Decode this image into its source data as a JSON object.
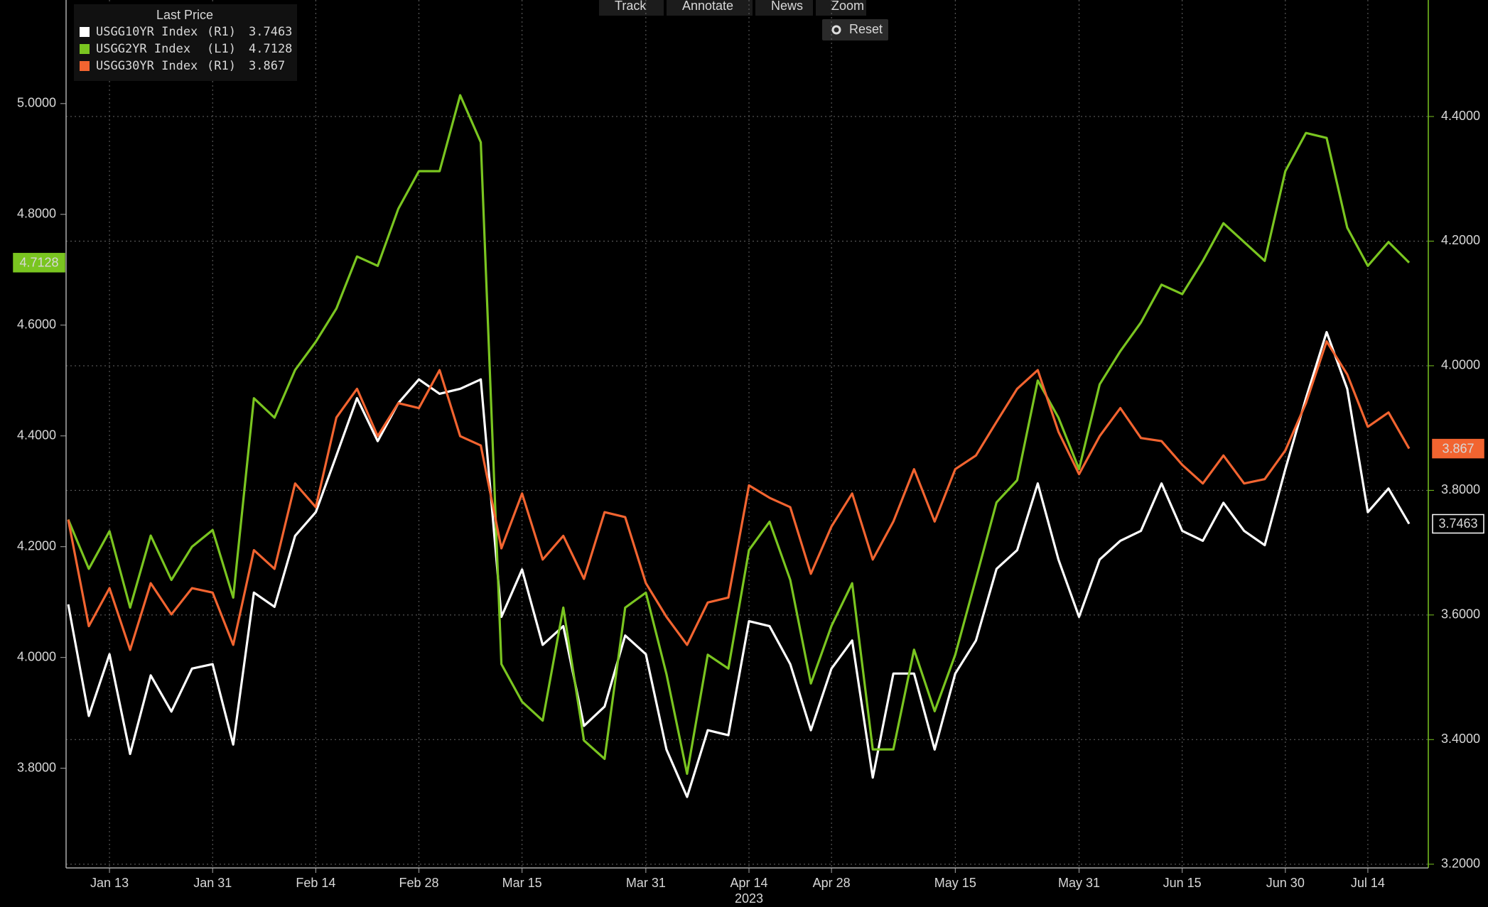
{
  "chart_data": {
    "type": "line",
    "legend_title": "Last Price",
    "toolbar": [
      "Track",
      "Annotate",
      "News",
      "Zoom"
    ],
    "reset": "Reset",
    "year": "2023",
    "categories": [
      null,
      null,
      "Jan 13",
      null,
      null,
      null,
      null,
      "Jan 31",
      null,
      null,
      null,
      null,
      "Feb 14",
      null,
      null,
      null,
      null,
      "Feb 28",
      null,
      null,
      null,
      null,
      "Mar 15",
      null,
      null,
      null,
      null,
      null,
      "Mar 31",
      null,
      null,
      null,
      null,
      "Apr 14",
      null,
      null,
      null,
      "Apr 28",
      null,
      null,
      null,
      null,
      null,
      "May 15",
      null,
      null,
      null,
      null,
      null,
      "May 31",
      null,
      null,
      null,
      null,
      "Jun 15",
      null,
      null,
      null,
      null,
      "Jun 30",
      null,
      null,
      null,
      "Jul 14",
      null,
      null
    ],
    "ylim": [
      3.62,
      5.187
    ],
    "yticks": [
      {
        "value": 3.8,
        "label": "3.8000"
      },
      {
        "value": 4.0,
        "label": "4.0000"
      },
      {
        "value": 4.2,
        "label": "4.2000"
      },
      {
        "value": 4.4,
        "label": "4.4000"
      },
      {
        "value": 4.6,
        "label": "4.6000"
      },
      {
        "value": 4.8,
        "label": "4.8000"
      },
      {
        "value": 5.0,
        "label": "5.0000"
      }
    ],
    "y2lim": [
      3.194,
      4.587
    ],
    "y2ticks": [
      {
        "value": 3.2,
        "label": "3.2000"
      },
      {
        "value": 3.4,
        "label": "3.4000"
      },
      {
        "value": 3.6,
        "label": "3.6000"
      },
      {
        "value": 3.8,
        "label": "3.8000"
      },
      {
        "value": 4.0,
        "label": "4.0000"
      },
      {
        "value": 4.2,
        "label": "4.2000"
      },
      {
        "value": 4.4,
        "label": "4.4000"
      }
    ],
    "grid": true,
    "series": [
      {
        "name": "USGG10YR Index",
        "axis_label": "(R1)",
        "axis": "y2",
        "color": "#ffffff",
        "values": [
          3.617,
          3.438,
          3.537,
          3.377,
          3.503,
          3.445,
          3.514,
          3.521,
          3.392,
          3.636,
          3.613,
          3.727,
          3.765,
          3.856,
          3.948,
          3.879,
          3.94,
          3.978,
          3.955,
          3.963,
          3.978,
          3.597,
          3.673,
          3.552,
          3.582,
          3.422,
          3.453,
          3.567,
          3.537,
          3.384,
          3.308,
          3.415,
          3.407,
          3.59,
          3.582,
          3.521,
          3.415,
          3.514,
          3.559,
          3.339,
          3.506,
          3.506,
          3.384,
          3.506,
          3.559,
          3.674,
          3.704,
          3.811,
          3.689,
          3.597,
          3.689,
          3.719,
          3.735,
          3.811,
          3.735,
          3.719,
          3.78,
          3.735,
          3.712,
          3.834,
          3.948,
          4.054,
          3.963,
          3.765,
          3.803,
          3.7463
        ]
      },
      {
        "name": "USGG2YR Index",
        "axis_label": "(L1)",
        "axis": "y",
        "color": "#7ac520",
        "values": [
          4.249,
          4.16,
          4.228,
          4.09,
          4.22,
          4.14,
          4.2,
          4.23,
          4.108,
          4.468,
          4.433,
          4.519,
          4.57,
          4.63,
          4.724,
          4.707,
          4.81,
          4.878,
          4.878,
          5.015,
          4.93,
          3.988,
          3.92,
          3.886,
          4.09,
          3.85,
          3.817,
          4.09,
          4.117,
          3.97,
          3.79,
          4.005,
          3.98,
          4.194,
          4.245,
          4.14,
          3.953,
          4.057,
          4.134,
          3.834,
          3.834,
          4.014,
          3.903,
          4.005,
          4.142,
          4.28,
          4.32,
          4.5,
          4.433,
          4.34,
          4.493,
          4.553,
          4.605,
          4.673,
          4.656,
          4.716,
          4.784,
          4.75,
          4.716,
          4.878,
          4.947,
          4.938,
          4.776,
          4.707,
          4.75,
          4.7128
        ]
      },
      {
        "name": "USGG30YR Index",
        "axis_label": "(R1)",
        "axis": "y2",
        "color": "#f26430",
        "values": [
          3.753,
          3.582,
          3.643,
          3.544,
          3.651,
          3.601,
          3.643,
          3.636,
          3.552,
          3.704,
          3.674,
          3.811,
          3.773,
          3.917,
          3.963,
          3.887,
          3.94,
          3.932,
          3.993,
          3.887,
          3.872,
          3.707,
          3.795,
          3.689,
          3.727,
          3.658,
          3.765,
          3.757,
          3.651,
          3.597,
          3.552,
          3.62,
          3.628,
          3.808,
          3.788,
          3.773,
          3.666,
          3.742,
          3.795,
          3.689,
          3.75,
          3.834,
          3.75,
          3.834,
          3.856,
          3.91,
          3.963,
          3.993,
          3.894,
          3.826,
          3.887,
          3.932,
          3.884,
          3.879,
          3.841,
          3.811,
          3.856,
          3.811,
          3.818,
          3.864,
          3.94,
          4.039,
          3.986,
          3.902,
          3.925,
          3.867
        ]
      }
    ]
  }
}
